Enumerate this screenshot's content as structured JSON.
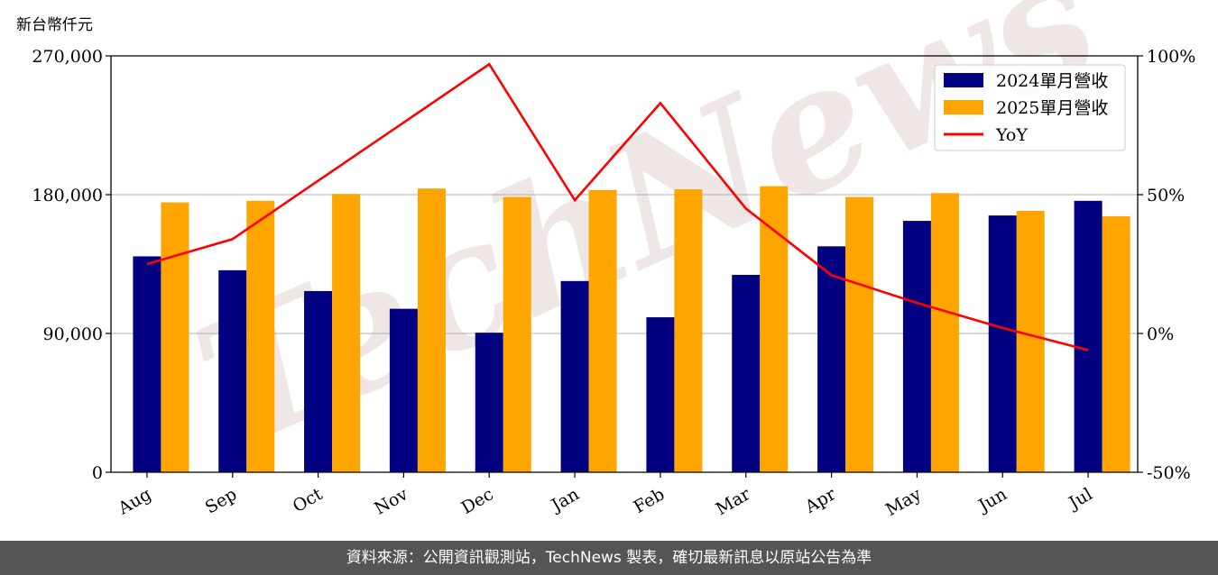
{
  "colors": {
    "series_2024": "#000080",
    "series_2025": "#FFA500",
    "yoy": "#FF0000",
    "footer_bg": "#555555",
    "watermark": "#e8dcdc"
  },
  "watermark_text": "TechNews",
  "chart_data": {
    "type": "bar",
    "unit_label": "新台幣仟元",
    "categories": [
      "Aug",
      "Sep",
      "Oct",
      "Nov",
      "Dec",
      "Jan",
      "Feb",
      "Mar",
      "Apr",
      "May",
      "Jun",
      "Jul"
    ],
    "series": [
      {
        "name": "2024單月營收",
        "values": [
          140000,
          131000,
          117500,
          106000,
          90500,
          124000,
          100500,
          128000,
          146500,
          163000,
          166500,
          176000
        ]
      },
      {
        "name": "2025單月營收",
        "values": [
          175000,
          176000,
          180500,
          184000,
          178500,
          183000,
          183500,
          185500,
          178500,
          181000,
          169500,
          166000
        ]
      }
    ],
    "line_series": {
      "name": "YoY",
      "axis": "right",
      "unit": "%",
      "values": [
        25,
        34,
        55,
        76,
        97,
        48,
        83,
        45,
        21,
        11,
        2,
        -6
      ]
    },
    "y_left": {
      "ylim": [
        0,
        270000
      ],
      "ticks": [
        0,
        90000,
        180000,
        270000
      ],
      "tick_labels": [
        "0",
        "90,000",
        "180,000",
        "270,000"
      ]
    },
    "y_right": {
      "ylim": [
        -50,
        100
      ],
      "ticks": [
        -50,
        0,
        50,
        100
      ],
      "tick_labels": [
        "-50%",
        "0%",
        "50%",
        "100%"
      ]
    },
    "grid": "horizontal",
    "legend_position": "top-right"
  },
  "footer": {
    "source_text": "資料來源：公開資訊觀測站，TechNews 製表，確切最新訊息以原站公告為準"
  }
}
